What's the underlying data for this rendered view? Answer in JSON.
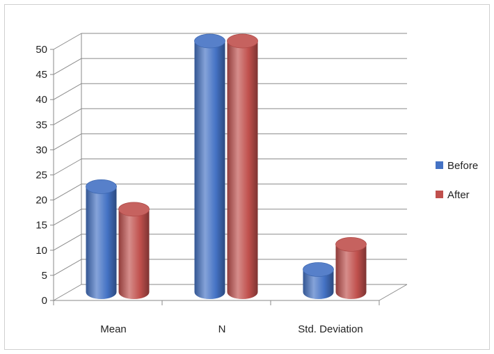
{
  "chart_data": {
    "type": "bar",
    "title": "",
    "xlabel": "",
    "ylabel": "",
    "categories": [
      "Mean",
      "N",
      "Std. Deviation"
    ],
    "series": [
      {
        "name": "Before",
        "values": [
          21,
          50,
          4.5
        ],
        "color": "#4472C4"
      },
      {
        "name": "After",
        "values": [
          16.5,
          50,
          9.5
        ],
        "color": "#C0504D"
      }
    ],
    "ylim": [
      0,
      50
    ],
    "yticks": [
      "0",
      "5",
      "10",
      "15",
      "20",
      "25",
      "30",
      "35",
      "40",
      "45",
      "50"
    ],
    "grid": true,
    "legend": "right",
    "style": "3d-cylinder"
  }
}
